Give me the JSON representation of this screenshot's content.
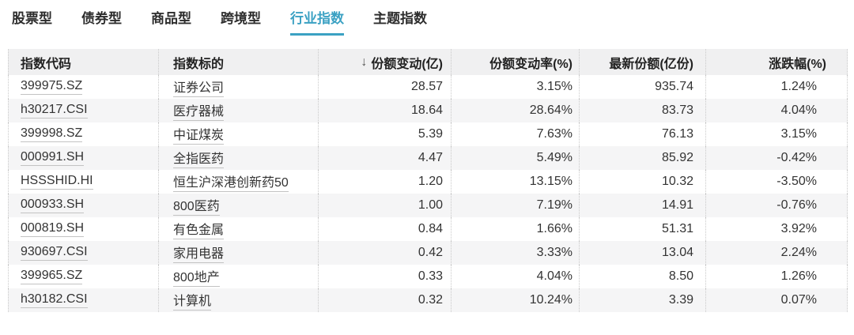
{
  "tab_bar": {
    "tabs": [
      {
        "label": "股票型",
        "active": false
      },
      {
        "label": "债券型",
        "active": false
      },
      {
        "label": "商品型",
        "active": false
      },
      {
        "label": "跨境型",
        "active": false
      },
      {
        "label": "行业指数",
        "active": true
      },
      {
        "label": "主题指数",
        "active": false
      }
    ]
  },
  "table": {
    "headers": {
      "code": "指数代码",
      "name": "指数标的",
      "share_change": "份额变动(亿)",
      "sort_icon": "↓",
      "share_change_rate": "份额变动率(%)",
      "latest_share": "最新份额(亿份)",
      "change_pct": "涨跌幅(%)"
    },
    "sort": {
      "column": "share_change",
      "direction": "descending"
    },
    "rows": [
      {
        "code": "399975.SZ",
        "name": "证券公司",
        "share_change": "28.57",
        "share_change_rate": "3.15%",
        "latest_share": "935.74",
        "change_pct": "1.24%"
      },
      {
        "code": "h30217.CSI",
        "name": "医疗器械",
        "share_change": "18.64",
        "share_change_rate": "28.64%",
        "latest_share": "83.73",
        "change_pct": "4.04%"
      },
      {
        "code": "399998.SZ",
        "name": "中证煤炭",
        "share_change": "5.39",
        "share_change_rate": "7.63%",
        "latest_share": "76.13",
        "change_pct": "3.15%"
      },
      {
        "code": "000991.SH",
        "name": "全指医药",
        "share_change": "4.47",
        "share_change_rate": "5.49%",
        "latest_share": "85.92",
        "change_pct": "-0.42%"
      },
      {
        "code": "HSSSHID.HI",
        "name": "恒生沪深港创新药50",
        "share_change": "1.20",
        "share_change_rate": "13.15%",
        "latest_share": "10.32",
        "change_pct": "-3.50%"
      },
      {
        "code": "000933.SH",
        "name": "800医药",
        "share_change": "1.00",
        "share_change_rate": "7.19%",
        "latest_share": "14.91",
        "change_pct": "-0.76%"
      },
      {
        "code": "000819.SH",
        "name": "有色金属",
        "share_change": "0.84",
        "share_change_rate": "1.66%",
        "latest_share": "51.31",
        "change_pct": "3.92%"
      },
      {
        "code": "930697.CSI",
        "name": "家用电器",
        "share_change": "0.42",
        "share_change_rate": "3.33%",
        "latest_share": "13.04",
        "change_pct": "2.24%"
      },
      {
        "code": "399965.SZ",
        "name": "800地产",
        "share_change": "0.33",
        "share_change_rate": "4.04%",
        "latest_share": "8.50",
        "change_pct": "1.26%"
      },
      {
        "code": "h30182.CSI",
        "name": "计算机",
        "share_change": "0.32",
        "share_change_rate": "10.24%",
        "latest_share": "3.39",
        "change_pct": "0.07%"
      }
    ]
  },
  "colors": {
    "accent_teal": "#3BA1C3",
    "header_bg": "#F0F0F1",
    "row_stripe": "#F5F5F6",
    "text": "#333333",
    "dotted_divider": "#C9C9C9",
    "link_underline": "#C3C3C3"
  }
}
